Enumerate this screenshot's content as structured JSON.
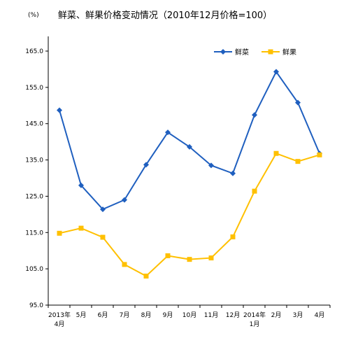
{
  "chart_data": {
    "type": "line",
    "title": "鲜菜、鲜果价格变动情况（2010年12月价格=100）",
    "unit_label": "(%)",
    "categories": [
      [
        "2013年",
        "4月"
      ],
      [
        "5月"
      ],
      [
        "6月"
      ],
      [
        "7月"
      ],
      [
        "8月"
      ],
      [
        "9月"
      ],
      [
        "10月"
      ],
      [
        "11月"
      ],
      [
        "12月"
      ],
      [
        "2014年",
        "1月"
      ],
      [
        "2月"
      ],
      [
        "3月"
      ],
      [
        "4月"
      ]
    ],
    "ylim": [
      95.0,
      165.0
    ],
    "yticks": [
      "95.0",
      "105.0",
      "115.0",
      "125.0",
      "135.0",
      "145.0",
      "155.0",
      "165.0"
    ],
    "grid": false,
    "legend_position": "top-right",
    "series": [
      {
        "name": "鲜菜",
        "color": "#1f5fbf",
        "marker": "diamond",
        "values": [
          148.7,
          128.0,
          121.4,
          124.0,
          133.7,
          142.6,
          138.6,
          133.5,
          131.3,
          147.4,
          159.3,
          150.8,
          136.8
        ]
      },
      {
        "name": "鲜果",
        "color": "#ffc000",
        "marker": "square",
        "values": [
          114.8,
          116.2,
          113.7,
          106.2,
          103.0,
          108.6,
          107.6,
          108.0,
          113.8,
          126.4,
          136.8,
          134.6,
          136.4
        ]
      }
    ]
  }
}
